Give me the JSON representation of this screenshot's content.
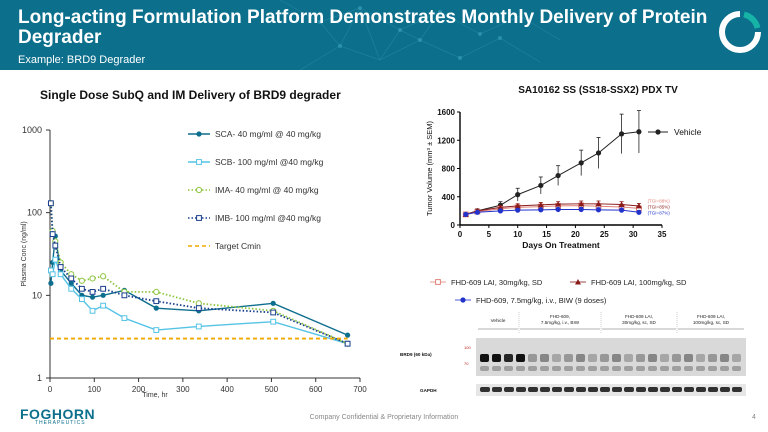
{
  "header": {
    "title": "Long-acting Formulation Platform Demonstrates Monthly Delivery of Protein Degrader",
    "subtitle": "Example: BRD9 Degrader"
  },
  "colors": {
    "header_bg": "#0c6f8c",
    "accent": "#16b3a7"
  },
  "footer": {
    "logo": "FOGHORN",
    "logo_sub": "THERAPEUTICS",
    "confidential": "Company Confidential & Proprietary Information",
    "page": "4"
  },
  "chart_data": [
    {
      "type": "line",
      "title": "Single Dose SubQ and IM Delivery of BRD9 degrader",
      "xlabel": "Time, hr",
      "ylabel": "Plasma Conc (ng/ml)",
      "xlim": [
        0,
        700
      ],
      "ylim": [
        1,
        1000
      ],
      "yscale": "log",
      "xticks": [
        0,
        100,
        200,
        300,
        400,
        500,
        600,
        700
      ],
      "yticks": [
        1,
        10,
        100,
        1000
      ],
      "legend_position": "top-right",
      "series": [
        {
          "name": "SCA- 40 mg/ml @ 40 mg/kg",
          "color": "#0e6e8e",
          "marker": "circle",
          "style": "solid",
          "x": [
            2,
            6,
            12,
            24,
            48,
            72,
            96,
            120,
            168,
            240,
            336,
            504,
            672
          ],
          "y": [
            14,
            25,
            52,
            20,
            14,
            10,
            9.5,
            10,
            11.5,
            7,
            6.5,
            8,
            3.3
          ]
        },
        {
          "name": "SCB- 100 mg/ml @40 mg/kg",
          "color": "#55c3e6",
          "marker": "square",
          "style": "solid",
          "x": [
            2,
            6,
            12,
            24,
            48,
            72,
            96,
            120,
            168,
            240,
            336,
            504,
            672
          ],
          "y": [
            20,
            18,
            27,
            18,
            12,
            9,
            6.5,
            7.5,
            5.3,
            3.8,
            4.2,
            4.8,
            2.6
          ]
        },
        {
          "name": "IMA- 40 mg/ml @ 40 mg/kg",
          "color": "#8dc63f",
          "marker": "circle-open",
          "style": "dotted",
          "x": [
            2,
            6,
            12,
            24,
            48,
            72,
            96,
            120,
            168,
            240,
            336,
            504,
            672
          ],
          "y": [
            130,
            60,
            45,
            25,
            18,
            15,
            16,
            17,
            11,
            11,
            8,
            6.5,
            2.6
          ]
        },
        {
          "name": "IMB- 100 mg/ml @40 mg/kg",
          "color": "#1a3f8f",
          "marker": "square-open",
          "style": "dotted",
          "x": [
            2,
            6,
            12,
            24,
            48,
            72,
            96,
            120,
            168,
            240,
            336,
            504,
            672
          ],
          "y": [
            130,
            55,
            40,
            22,
            16,
            12,
            11,
            12,
            10,
            8.5,
            7,
            6.2,
            2.6
          ]
        },
        {
          "name": "Target Cmin",
          "color": "#f2a900",
          "marker": "none",
          "style": "dashed",
          "x": [
            0,
            672
          ],
          "y": [
            3,
            3
          ]
        }
      ]
    },
    {
      "type": "line",
      "title": "SA10162 SS (SS18-SSX2) PDX TV",
      "xlabel": "Days On Treatment",
      "ylabel": "Tumor Volume (mm³ ± SEM)",
      "xlim": [
        0,
        35
      ],
      "ylim": [
        0,
        1600
      ],
      "xticks": [
        0,
        5,
        10,
        15,
        20,
        25,
        30,
        35
      ],
      "yticks": [
        0,
        400,
        800,
        1200,
        1600
      ],
      "legend_position": "top-right",
      "series": [
        {
          "name": "Vehicle",
          "color": "#222222",
          "marker": "circle",
          "x": [
            1,
            3,
            7,
            10,
            14,
            17,
            21,
            24,
            28,
            31
          ],
          "y": [
            150,
            200,
            280,
            430,
            560,
            700,
            880,
            1020,
            1290,
            1320
          ],
          "err": [
            20,
            30,
            50,
            90,
            120,
            140,
            180,
            220,
            280,
            300
          ]
        },
        {
          "name": "FHD-609 LAI, 30mg/kg, SD",
          "color": "#e0837a",
          "marker": "square-open",
          "x": [
            1,
            3,
            7,
            10,
            14,
            17,
            21,
            24,
            28,
            31
          ],
          "y": [
            150,
            190,
            230,
            250,
            260,
            270,
            275,
            265,
            255,
            235
          ],
          "err": [
            15,
            20,
            25,
            30,
            35,
            35,
            40,
            40,
            40,
            35
          ]
        },
        {
          "name": "FHD-609 LAI, 100mg/kg, SD",
          "color": "#8b1a1a",
          "marker": "triangle",
          "x": [
            1,
            3,
            7,
            10,
            14,
            17,
            21,
            24,
            28,
            31
          ],
          "y": [
            150,
            200,
            250,
            270,
            285,
            295,
            300,
            300,
            290,
            270
          ],
          "err": [
            15,
            20,
            25,
            30,
            35,
            35,
            40,
            40,
            40,
            35
          ]
        },
        {
          "name": "FHD-609, 7.5mg/kg, i.v., BIW (9 doses)",
          "color": "#2233cc",
          "marker": "circle",
          "x": [
            1,
            3,
            7,
            10,
            14,
            17,
            21,
            24,
            28,
            31
          ],
          "y": [
            150,
            180,
            200,
            210,
            215,
            220,
            220,
            215,
            210,
            180
          ],
          "err": [
            15,
            20,
            20,
            25,
            25,
            25,
            30,
            30,
            30,
            25
          ]
        }
      ],
      "annotations": [
        "(TGI=88%)",
        "(TGI=85%)",
        "(TGI=87%)"
      ]
    }
  ],
  "blot": {
    "groups": [
      "Vehicle",
      "FHD-609, 7.5mg/kg, i.v., BIW",
      "FHD-609 LAI, 30mg/kg, sc, SD",
      "FHD-609 LAI, 100mg/kg, sc, SD"
    ],
    "rows": [
      "BRD9 (60 kDa)",
      "GAPDH"
    ],
    "markers": [
      "100",
      "70"
    ]
  }
}
